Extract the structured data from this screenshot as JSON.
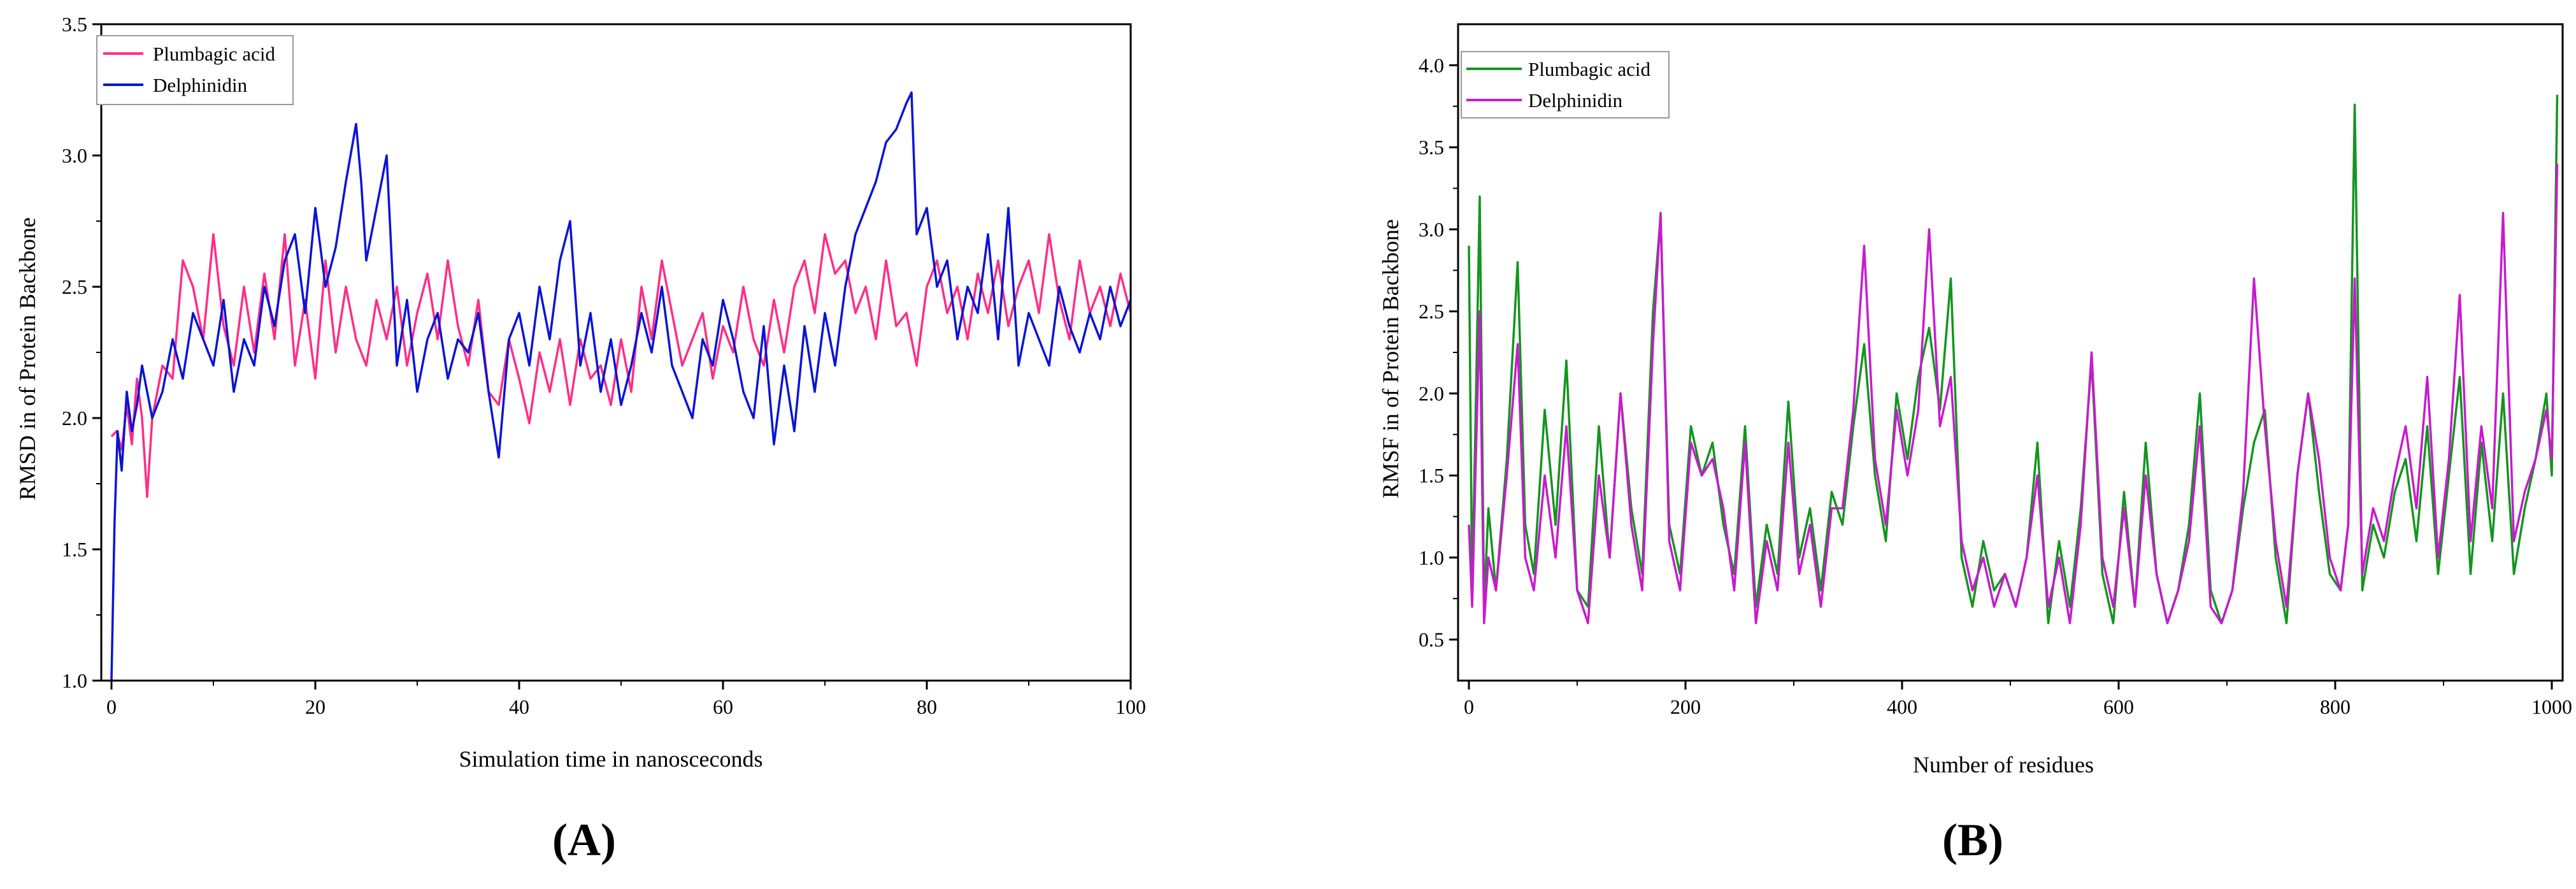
{
  "chart_data": [
    {
      "type": "line",
      "panel_label": "(A)",
      "xlabel": "Simulation time in nanosceconds",
      "ylabel": "RMSD in of  Protein Backbone",
      "xlim": [
        -1,
        100
      ],
      "ylim": [
        1.0,
        3.5
      ],
      "xticks": [
        0,
        20,
        40,
        60,
        80,
        100
      ],
      "yticks": [
        1.0,
        1.5,
        2.0,
        2.5,
        3.0,
        3.5
      ],
      "xtick_labels": [
        "0",
        "20",
        "40",
        "60",
        "80",
        "100"
      ],
      "ytick_labels": [
        "1.0",
        "1.5",
        "2.0",
        "2.5",
        "3.0",
        "3.5"
      ],
      "legend_position": "top-left",
      "grid": false,
      "series": [
        {
          "name": "Plumbagic acid",
          "color": "#ff2d87",
          "x": [
            0,
            0.5,
            1,
            1.5,
            2,
            2.5,
            3,
            3.5,
            4,
            5,
            6,
            7,
            8,
            9,
            10,
            11,
            12,
            13,
            14,
            15,
            16,
            17,
            18,
            19,
            20,
            21,
            22,
            23,
            24,
            25,
            26,
            27,
            28,
            29,
            30,
            31,
            32,
            33,
            34,
            35,
            36,
            37,
            38,
            39,
            40,
            41,
            42,
            43,
            44,
            45,
            46,
            47,
            48,
            49,
            50,
            51,
            52,
            53,
            54,
            55,
            56,
            57,
            58,
            59,
            60,
            61,
            62,
            63,
            64,
            65,
            66,
            67,
            68,
            69,
            70,
            71,
            72,
            73,
            74,
            75,
            76,
            77,
            78,
            79,
            80,
            81,
            82,
            83,
            84,
            85,
            86,
            87,
            88,
            89,
            90,
            91,
            92,
            93,
            94,
            95,
            96,
            97,
            98,
            99,
            100
          ],
          "values": [
            1.93,
            1.95,
            1.88,
            2.05,
            1.9,
            2.15,
            2.0,
            1.7,
            2.0,
            2.2,
            2.15,
            2.6,
            2.5,
            2.3,
            2.7,
            2.35,
            2.2,
            2.5,
            2.25,
            2.55,
            2.3,
            2.7,
            2.2,
            2.45,
            2.15,
            2.6,
            2.25,
            2.5,
            2.3,
            2.2,
            2.45,
            2.3,
            2.5,
            2.2,
            2.4,
            2.55,
            2.3,
            2.6,
            2.35,
            2.2,
            2.45,
            2.1,
            2.05,
            2.3,
            2.15,
            1.98,
            2.25,
            2.1,
            2.3,
            2.05,
            2.3,
            2.15,
            2.2,
            2.05,
            2.3,
            2.1,
            2.5,
            2.3,
            2.6,
            2.4,
            2.2,
            2.3,
            2.4,
            2.15,
            2.35,
            2.25,
            2.5,
            2.3,
            2.2,
            2.45,
            2.25,
            2.5,
            2.6,
            2.4,
            2.7,
            2.55,
            2.6,
            2.4,
            2.5,
            2.3,
            2.6,
            2.35,
            2.4,
            2.2,
            2.5,
            2.6,
            2.4,
            2.5,
            2.3,
            2.55,
            2.4,
            2.6,
            2.35,
            2.5,
            2.6,
            2.4,
            2.7,
            2.45,
            2.3,
            2.6,
            2.4,
            2.5,
            2.35,
            2.55,
            2.4
          ]
        },
        {
          "name": "Delphinidin",
          "color": "#0a14d6",
          "x": [
            0,
            0.3,
            0.6,
            1,
            1.5,
            2,
            2.5,
            3,
            4,
            5,
            6,
            7,
            8,
            9,
            10,
            11,
            12,
            13,
            14,
            15,
            16,
            17,
            18,
            19,
            20,
            21,
            22,
            23,
            24,
            24.5,
            25,
            26,
            27,
            28,
            29,
            30,
            31,
            32,
            33,
            34,
            35,
            36,
            37,
            38,
            39,
            40,
            41,
            42,
            43,
            44,
            45,
            46,
            47,
            48,
            49,
            50,
            51,
            52,
            53,
            54,
            55,
            56,
            57,
            58,
            59,
            60,
            61,
            62,
            63,
            64,
            65,
            66,
            67,
            68,
            69,
            70,
            71,
            72,
            73,
            74,
            75,
            76,
            77,
            78,
            78.5,
            79,
            80,
            81,
            82,
            83,
            84,
            85,
            86,
            87,
            88,
            89,
            90,
            91,
            92,
            93,
            94,
            95,
            96,
            97,
            98,
            99,
            100
          ],
          "values": [
            1.0,
            1.6,
            1.95,
            1.8,
            2.1,
            1.95,
            2.05,
            2.2,
            2.0,
            2.1,
            2.3,
            2.15,
            2.4,
            2.3,
            2.2,
            2.45,
            2.1,
            2.3,
            2.2,
            2.5,
            2.35,
            2.6,
            2.7,
            2.4,
            2.8,
            2.5,
            2.65,
            2.9,
            3.12,
            2.9,
            2.6,
            2.8,
            3.0,
            2.2,
            2.45,
            2.1,
            2.3,
            2.4,
            2.15,
            2.3,
            2.25,
            2.4,
            2.1,
            1.85,
            2.3,
            2.4,
            2.2,
            2.5,
            2.3,
            2.6,
            2.75,
            2.2,
            2.4,
            2.1,
            2.3,
            2.05,
            2.2,
            2.4,
            2.25,
            2.5,
            2.2,
            2.1,
            2.0,
            2.3,
            2.2,
            2.45,
            2.3,
            2.1,
            2.0,
            2.35,
            1.9,
            2.2,
            1.95,
            2.35,
            2.1,
            2.4,
            2.2,
            2.5,
            2.7,
            2.8,
            2.9,
            3.05,
            3.1,
            3.2,
            3.24,
            2.7,
            2.8,
            2.5,
            2.6,
            2.3,
            2.5,
            2.4,
            2.7,
            2.3,
            2.8,
            2.2,
            2.4,
            2.3,
            2.2,
            2.5,
            2.35,
            2.25,
            2.4,
            2.3,
            2.5,
            2.35,
            2.45
          ]
        }
      ]
    },
    {
      "type": "line",
      "panel_label": "(B)",
      "xlabel": "Number of residues",
      "ylabel": "RMSF in of  Protein Backbone",
      "xlim": [
        -10,
        1010
      ],
      "ylim": [
        0.25,
        4.25
      ],
      "xticks": [
        0,
        200,
        400,
        600,
        800,
        1000
      ],
      "yticks": [
        0.5,
        1.0,
        1.5,
        2.0,
        2.5,
        3.0,
        3.5,
        4.0
      ],
      "xtick_labels": [
        "0",
        "200",
        "400",
        "600",
        "800",
        "1000"
      ],
      "ytick_labels": [
        "0.5",
        "1.0",
        "1.5",
        "2.0",
        "2.5",
        "3.0",
        "3.5",
        "4.0"
      ],
      "legend_position": "top-left",
      "grid": false,
      "series": [
        {
          "name": "Plumbagic acid",
          "color": "#14951e",
          "x": [
            0,
            3,
            6,
            10,
            14,
            18,
            25,
            35,
            45,
            52,
            60,
            70,
            80,
            90,
            100,
            110,
            120,
            130,
            140,
            150,
            160,
            170,
            177,
            185,
            195,
            205,
            215,
            225,
            235,
            245,
            255,
            265,
            275,
            285,
            295,
            305,
            315,
            325,
            335,
            345,
            355,
            365,
            375,
            385,
            395,
            405,
            415,
            425,
            435,
            445,
            455,
            465,
            475,
            485,
            495,
            505,
            515,
            525,
            535,
            545,
            555,
            565,
            575,
            585,
            595,
            605,
            615,
            625,
            635,
            645,
            655,
            665,
            675,
            685,
            695,
            705,
            715,
            725,
            735,
            745,
            755,
            765,
            775,
            785,
            795,
            805,
            812,
            818,
            825,
            835,
            845,
            855,
            865,
            875,
            885,
            895,
            905,
            915,
            925,
            935,
            945,
            955,
            965,
            975,
            985,
            995,
            1000,
            1005
          ],
          "values": [
            2.9,
            0.8,
            1.8,
            3.2,
            0.7,
            1.3,
            0.8,
            1.6,
            2.8,
            1.2,
            0.9,
            1.9,
            1.2,
            2.2,
            0.8,
            0.7,
            1.8,
            1.0,
            2.0,
            1.3,
            0.9,
            2.5,
            3.08,
            1.2,
            0.9,
            1.8,
            1.5,
            1.7,
            1.2,
            0.9,
            1.8,
            0.7,
            1.2,
            0.9,
            1.95,
            1.0,
            1.3,
            0.8,
            1.4,
            1.2,
            1.8,
            2.3,
            1.5,
            1.1,
            2.0,
            1.6,
            2.1,
            2.4,
            1.9,
            2.7,
            1.0,
            0.7,
            1.1,
            0.8,
            0.9,
            0.7,
            1.0,
            1.7,
            0.6,
            1.1,
            0.7,
            1.3,
            2.2,
            0.9,
            0.6,
            1.4,
            0.7,
            1.7,
            0.9,
            0.6,
            0.8,
            1.2,
            2.0,
            0.8,
            0.6,
            0.8,
            1.3,
            1.7,
            1.9,
            1.0,
            0.6,
            1.5,
            2.0,
            1.4,
            0.9,
            0.8,
            1.2,
            3.76,
            0.8,
            1.2,
            1.0,
            1.4,
            1.6,
            1.1,
            1.8,
            0.9,
            1.5,
            2.1,
            0.9,
            1.7,
            1.1,
            2.0,
            0.9,
            1.3,
            1.6,
            2.0,
            1.5,
            3.82
          ]
        },
        {
          "name": "Delphinidin",
          "color": "#c81ad0",
          "x": [
            0,
            3,
            6,
            10,
            14,
            18,
            25,
            35,
            45,
            52,
            60,
            70,
            80,
            90,
            100,
            110,
            120,
            130,
            140,
            150,
            160,
            170,
            177,
            185,
            195,
            205,
            215,
            225,
            235,
            245,
            255,
            265,
            275,
            285,
            295,
            305,
            315,
            325,
            335,
            345,
            355,
            365,
            375,
            385,
            395,
            405,
            415,
            425,
            435,
            445,
            455,
            465,
            475,
            485,
            495,
            505,
            515,
            525,
            535,
            545,
            555,
            565,
            575,
            585,
            595,
            605,
            615,
            625,
            635,
            645,
            655,
            665,
            675,
            685,
            695,
            705,
            715,
            725,
            735,
            745,
            755,
            765,
            775,
            785,
            795,
            805,
            812,
            818,
            825,
            835,
            845,
            855,
            865,
            875,
            885,
            895,
            905,
            915,
            925,
            935,
            945,
            955,
            965,
            975,
            985,
            995,
            1000,
            1005
          ],
          "values": [
            1.2,
            0.7,
            1.5,
            2.5,
            0.6,
            1.0,
            0.8,
            1.5,
            2.3,
            1.0,
            0.8,
            1.5,
            1.0,
            1.8,
            0.8,
            0.6,
            1.5,
            1.0,
            2.0,
            1.2,
            0.8,
            2.3,
            3.1,
            1.1,
            0.8,
            1.7,
            1.5,
            1.6,
            1.3,
            0.8,
            1.7,
            0.6,
            1.1,
            0.8,
            1.7,
            0.9,
            1.2,
            0.7,
            1.3,
            1.3,
            1.9,
            2.9,
            1.6,
            1.2,
            1.9,
            1.5,
            1.9,
            3.0,
            1.8,
            2.1,
            1.1,
            0.8,
            1.0,
            0.7,
            0.9,
            0.7,
            1.0,
            1.5,
            0.7,
            1.0,
            0.6,
            1.2,
            2.25,
            1.0,
            0.7,
            1.3,
            0.7,
            1.5,
            0.9,
            0.6,
            0.8,
            1.1,
            1.8,
            0.7,
            0.6,
            0.8,
            1.4,
            2.7,
            1.8,
            1.1,
            0.7,
            1.5,
            2.0,
            1.6,
            1.0,
            0.8,
            1.2,
            2.7,
            0.9,
            1.3,
            1.1,
            1.5,
            1.8,
            1.3,
            2.1,
            1.0,
            1.6,
            2.6,
            1.1,
            1.8,
            1.3,
            3.1,
            1.1,
            1.4,
            1.6,
            1.9,
            1.6,
            3.4
          ]
        }
      ]
    }
  ]
}
